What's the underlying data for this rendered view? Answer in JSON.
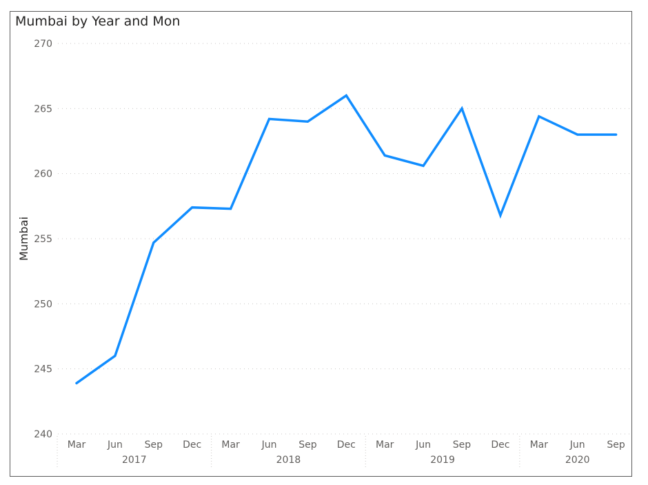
{
  "chart_data": {
    "type": "line",
    "title": "Mumbai by Year and Mon",
    "xlabel": "",
    "ylabel": "Mumbai",
    "ylim": [
      240,
      270
    ],
    "yticks": [
      240,
      245,
      250,
      255,
      260,
      265,
      270
    ],
    "grid": true,
    "color": "#118DFF",
    "groups": [
      {
        "year": "2017",
        "months": [
          "Mar",
          "Jun",
          "Sep",
          "Dec"
        ]
      },
      {
        "year": "2018",
        "months": [
          "Mar",
          "Jun",
          "Sep",
          "Dec"
        ]
      },
      {
        "year": "2019",
        "months": [
          "Mar",
          "Jun",
          "Sep",
          "Dec"
        ]
      },
      {
        "year": "2020",
        "months": [
          "Mar",
          "Jun",
          "Sep"
        ]
      }
    ],
    "series": [
      {
        "values": [
          243.9,
          246.0,
          254.7,
          257.4,
          257.3,
          264.2,
          264.0,
          266.0,
          261.4,
          260.6,
          265.0,
          256.8,
          264.4,
          263.0,
          263.0
        ]
      }
    ]
  }
}
